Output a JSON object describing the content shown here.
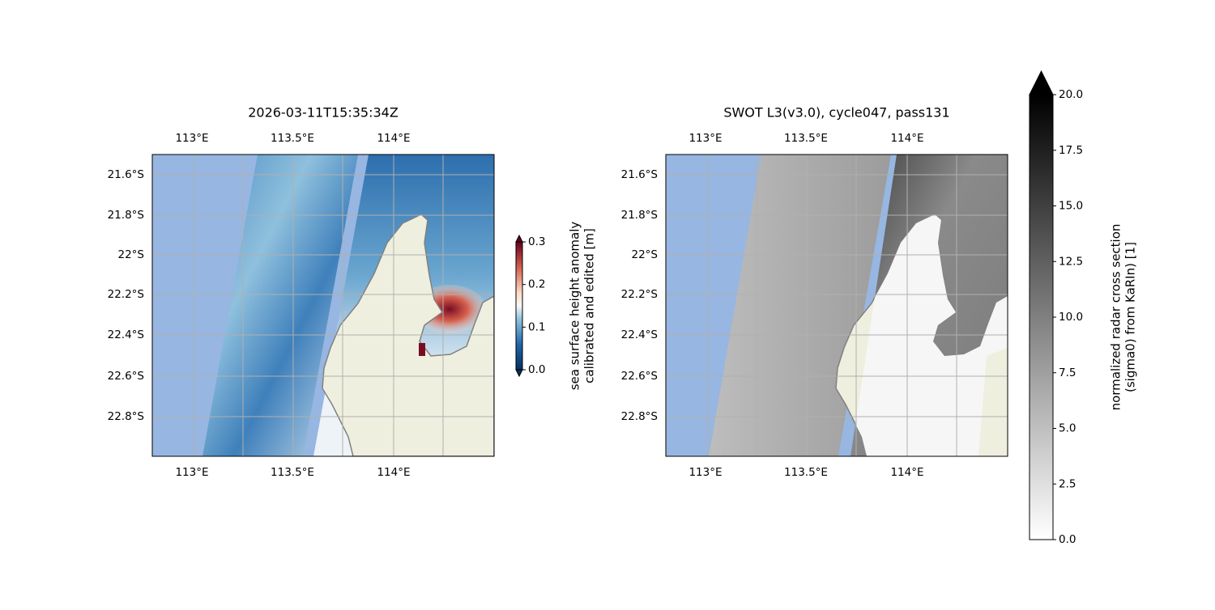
{
  "panels": [
    {
      "title": "2026-03-11T15:35:34Z",
      "lon_labels_top": [
        "113°E",
        "113.5°E",
        "114°E"
      ],
      "lon_labels_bottom": [
        "113°E",
        "113.5°E",
        "114°E"
      ],
      "lat_labels": [
        "21.6°S",
        "21.8°S",
        "22°S",
        "22.2°S",
        "22.4°S",
        "22.6°S",
        "22.8°S"
      ],
      "colorbar": {
        "label": [
          "sea surface height anomaly",
          "calibrated and edited [m]"
        ],
        "lim": [
          0,
          0.3
        ],
        "ticks": [
          {
            "value": 0,
            "label": "0.0"
          },
          0.1,
          0.2,
          0.3
        ]
      }
    },
    {
      "title": "SWOT L3(v3.0), cycle047, pass131",
      "lon_labels_top": [
        "113°E",
        "113.5°E",
        "114°E"
      ],
      "lon_labels_bottom": [
        "113°E",
        "113.5°E",
        "114°E"
      ],
      "lat_labels": [
        "21.6°S",
        "21.8°S",
        "22°S",
        "22.2°S",
        "22.4°S",
        "22.6°S",
        "22.8°S"
      ],
      "colorbar": {
        "label": [
          "normalized radar cross section",
          "(sigma0) from KaRIn) [1]"
        ],
        "lim": [
          0,
          20
        ],
        "ticks": [
          {
            "value": 0,
            "label": "0.0"
          },
          2.5,
          {
            "value": 5,
            "label": "5.0"
          },
          7.5,
          {
            "value": 10,
            "label": "10.0"
          },
          12.5,
          {
            "value": 15,
            "label": "15.0"
          },
          17.5,
          {
            "value": 20,
            "label": "20.0"
          }
        ]
      }
    }
  ]
}
